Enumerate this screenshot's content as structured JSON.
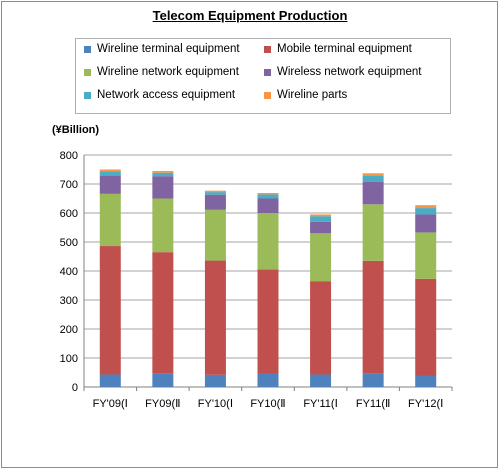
{
  "chart_data": {
    "type": "bar",
    "stacked": true,
    "title": "Telecom Equipment Production",
    "ylabel": "(¥Billion)",
    "xlabel": "",
    "ylim": [
      0,
      800
    ],
    "yticks": [
      0,
      100,
      200,
      300,
      400,
      500,
      600,
      700,
      800
    ],
    "grid": true,
    "legend_position": "top",
    "categories": [
      "FY'09(Ⅰ",
      "FY09(Ⅱ",
      "FY'10(Ⅰ",
      "FY10(Ⅱ",
      "FY'11(Ⅰ",
      "FY11(Ⅱ",
      "FY'12(Ⅰ"
    ],
    "series": [
      {
        "name": "Wireline terminal equipment",
        "color": "#4f81bd",
        "values": [
          43,
          47,
          42,
          45,
          43,
          47,
          38
        ]
      },
      {
        "name": "Mobile terminal equipment",
        "color": "#c0504d",
        "values": [
          443,
          418,
          394,
          360,
          322,
          388,
          335
        ]
      },
      {
        "name": "Wireline network equipment",
        "color": "#9bbb59",
        "values": [
          180,
          185,
          175,
          195,
          165,
          195,
          160
        ]
      },
      {
        "name": "Wireless network equipment",
        "color": "#8064a2",
        "values": [
          63,
          77,
          52,
          50,
          40,
          77,
          62
        ]
      },
      {
        "name": "Network access equipment",
        "color": "#4bacc6",
        "values": [
          14,
          12,
          9,
          14,
          19,
          22,
          22
        ]
      },
      {
        "name": "Wireline parts",
        "color": "#f79646",
        "values": [
          7,
          6,
          5,
          5,
          6,
          8,
          10
        ]
      }
    ]
  }
}
